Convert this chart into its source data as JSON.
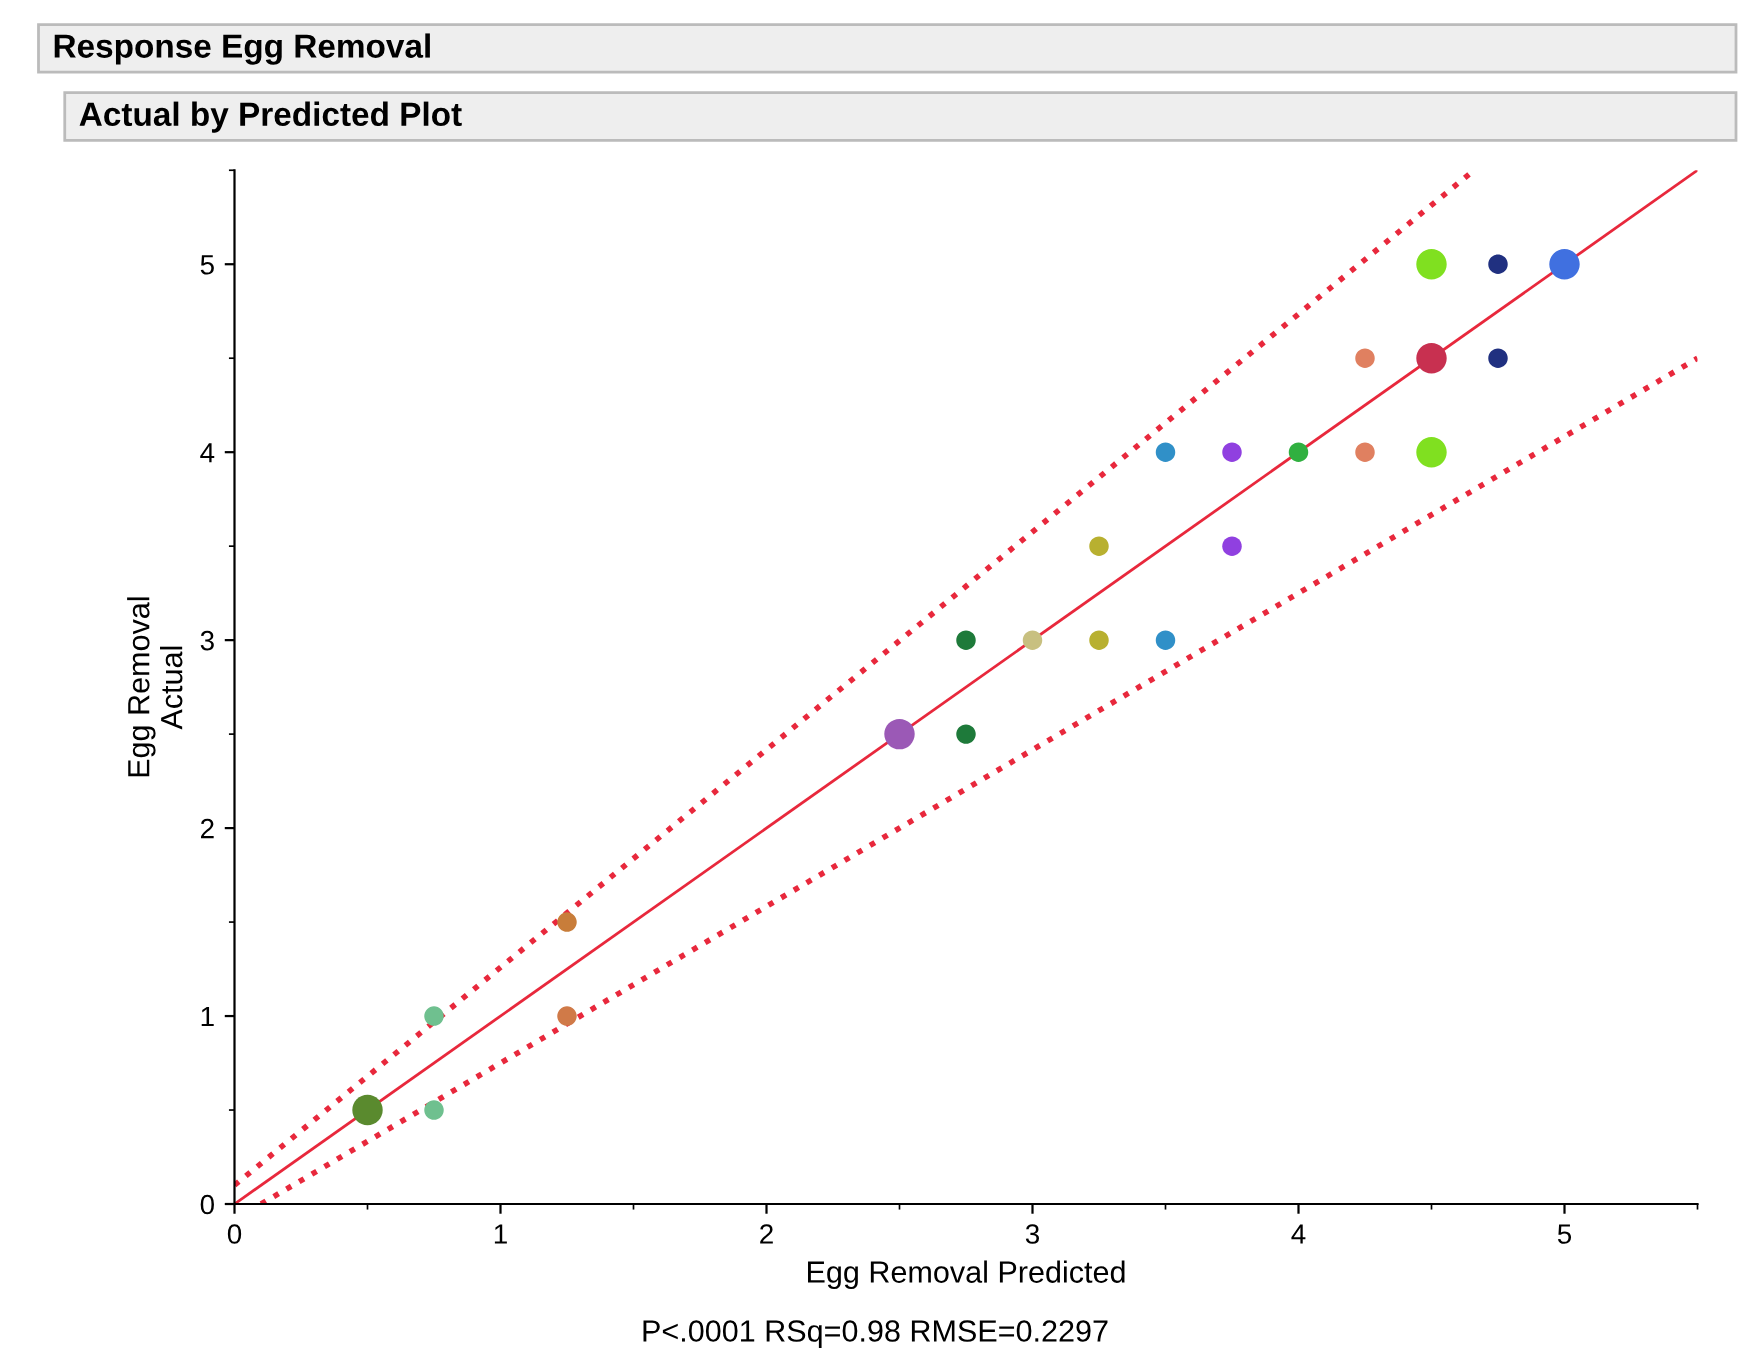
{
  "chart_data": {
    "type": "scatter",
    "title": "Response Egg Removal",
    "subtitle": "Actual by Predicted Plot",
    "xlabel": "Egg Removal Predicted",
    "ylabel": "Egg Removal\nActual",
    "annotations": [
      "P<.0001 RSq=0.98 RMSE=0.2297"
    ],
    "xlim": [
      0,
      5.5
    ],
    "ylim": [
      0,
      5.5
    ],
    "xticks": [
      0,
      1,
      2,
      3,
      4,
      5
    ],
    "yticks": [
      0,
      1,
      2,
      3,
      4,
      5
    ],
    "grid": false,
    "legend": false,
    "series": [
      {
        "type": "line",
        "color": "#e8283c",
        "line_style": "solid",
        "x": [
          0,
          5.5
        ],
        "values": [
          0,
          5.5
        ]
      },
      {
        "type": "line",
        "color": "#e8283c",
        "line_style": "dotted",
        "x": [
          0,
          4.66
        ],
        "values": [
          0.1,
          5.5
        ]
      },
      {
        "type": "line",
        "color": "#e8283c",
        "line_style": "dotted",
        "x": [
          0.1,
          5.5
        ],
        "values": [
          0,
          4.5
        ]
      },
      {
        "marker": "circle",
        "x": [
          0.5,
          0.75,
          0.75,
          1.25,
          1.25,
          2.5,
          2.75,
          2.75,
          3.0,
          3.25,
          3.25,
          3.5,
          3.5,
          3.75,
          3.75,
          4.0,
          4.25,
          4.25,
          4.5,
          4.5,
          4.5,
          4.75,
          4.75,
          5.0
        ],
        "values": [
          0.5,
          1.0,
          0.5,
          1.5,
          1.0,
          2.5,
          3.0,
          2.5,
          3.0,
          3.5,
          3.0,
          4.0,
          3.0,
          4.0,
          3.5,
          4.0,
          4.5,
          4.0,
          5.0,
          4.5,
          4.0,
          5.0,
          4.5,
          5.0
        ],
        "colors": [
          "#5a8a2e",
          "#6fc08f",
          "#6fc08f",
          "#c87d3a",
          "#d07a48",
          "#9b59b6",
          "#1e7a3a",
          "#1e7a3a",
          "#c8c080",
          "#b8b030",
          "#b8b030",
          "#3090c8",
          "#3090c8",
          "#9040e0",
          "#9040e0",
          "#30b040",
          "#e08060",
          "#e08060",
          "#80e020",
          "#c83050",
          "#80e020",
          "#203080",
          "#203080",
          "#4070e0"
        ],
        "sizes": [
          1,
          0.41,
          0.41,
          0.41,
          0.41,
          1,
          0.41,
          0.41,
          0.41,
          0.41,
          0.41,
          0.41,
          0.41,
          0.41,
          0.41,
          0.41,
          0.41,
          0.41,
          1,
          1,
          1,
          0.41,
          0.41,
          1
        ]
      }
    ]
  }
}
